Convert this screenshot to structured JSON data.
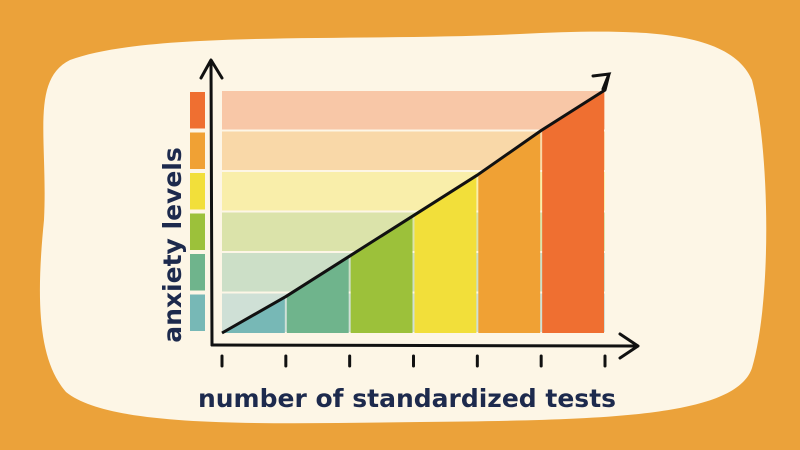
{
  "chart_data": {
    "type": "area",
    "x_label": "number of standardized tests",
    "y_label": "anxiety levels",
    "categories": [
      null,
      null,
      null,
      null,
      null,
      null,
      null
    ],
    "values": [
      0,
      0.9,
      1.9,
      2.9,
      3.9,
      5,
      6
    ],
    "colors": [
      "#77b8b6",
      "#6fb48c",
      "#9cc13a",
      "#f2df3a",
      "#f0a134",
      "#ef6f31"
    ],
    "ylim": [
      0,
      6
    ]
  }
}
